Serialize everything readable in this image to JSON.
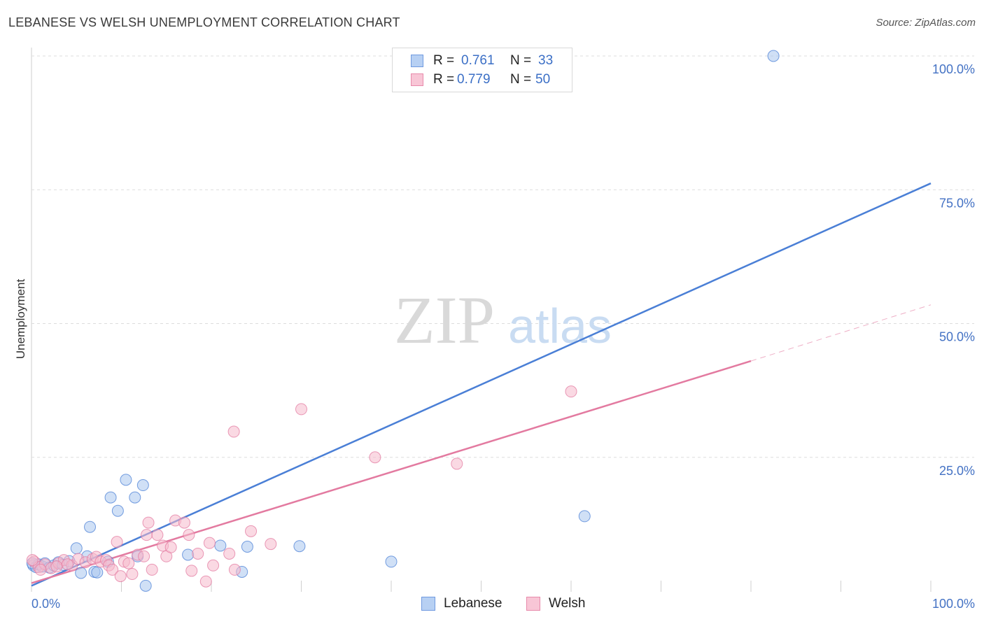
{
  "title": "LEBANESE VS WELSH UNEMPLOYMENT CORRELATION CHART",
  "source": "Source: ZipAtlas.com",
  "watermark": {
    "zip": "ZIP",
    "atlas": "atlas"
  },
  "legend": {
    "rows": [
      {
        "r_label": "R =",
        "r_value": "0.761",
        "n_label": "N =",
        "n_value": "33"
      },
      {
        "r_label": "R =",
        "r_value": "0.779",
        "n_label": "N =",
        "n_value": "50"
      }
    ]
  },
  "chart_data": {
    "type": "scatter",
    "title": "LEBANESE VS WELSH UNEMPLOYMENT CORRELATION CHART",
    "xlabel": "",
    "ylabel": "Unemployment",
    "xlim": [
      0,
      100
    ],
    "ylim": [
      0,
      100
    ],
    "x_tick_labels": [
      "0.0%",
      "100.0%"
    ],
    "y_tick_labels": [
      "100.0%",
      "75.0%",
      "50.0%",
      "25.0%"
    ],
    "y_ticks": [
      100,
      75,
      50,
      25
    ],
    "grid": true,
    "series": [
      {
        "name": "Lebanese",
        "color": "#4a7fd6",
        "fill": "#a9c6ef",
        "trend": {
          "x0": 0,
          "y0": 1.0,
          "x1": 100,
          "y1": 76.2,
          "dashed_from": null
        },
        "points": [
          [
            0.2,
            4.8
          ],
          [
            0.5,
            4.5
          ],
          [
            0.8,
            5.0
          ],
          [
            1.2,
            4.6
          ],
          [
            1.5,
            5.2
          ],
          [
            2.0,
            4.4
          ],
          [
            2.5,
            4.8
          ],
          [
            3.0,
            5.4
          ],
          [
            3.5,
            4.9
          ],
          [
            4.2,
            5.6
          ],
          [
            5.0,
            8.0
          ],
          [
            5.5,
            3.4
          ],
          [
            6.2,
            6.5
          ],
          [
            6.5,
            12.0
          ],
          [
            7.0,
            3.6
          ],
          [
            7.3,
            3.5
          ],
          [
            8.5,
            5.5
          ],
          [
            8.8,
            17.5
          ],
          [
            9.6,
            15.0
          ],
          [
            10.5,
            20.8
          ],
          [
            11.5,
            17.5
          ],
          [
            11.8,
            6.5
          ],
          [
            12.4,
            19.8
          ],
          [
            12.7,
            1.0
          ],
          [
            17.4,
            6.8
          ],
          [
            21.0,
            8.5
          ],
          [
            23.4,
            3.6
          ],
          [
            24.0,
            8.3
          ],
          [
            29.8,
            8.4
          ],
          [
            40.0,
            5.5
          ],
          [
            61.5,
            14.0
          ],
          [
            82.5,
            100.0
          ],
          [
            0.1,
            5.2
          ]
        ]
      },
      {
        "name": "Welsh",
        "color": "#e37aa0",
        "fill": "#f6b9cc",
        "trend": {
          "x0": 0,
          "y0": 1.5,
          "x1": 80,
          "y1": 43.0,
          "dashed_to_x": 100,
          "dashed_to_y": 53.5
        },
        "points": [
          [
            0.3,
            5.5
          ],
          [
            0.8,
            4.5
          ],
          [
            1.5,
            5.0
          ],
          [
            2.2,
            4.3
          ],
          [
            3.0,
            5.2
          ],
          [
            3.6,
            5.8
          ],
          [
            4.5,
            4.8
          ],
          [
            5.2,
            6.0
          ],
          [
            6.0,
            5.4
          ],
          [
            6.8,
            6.0
          ],
          [
            7.2,
            6.4
          ],
          [
            7.7,
            5.5
          ],
          [
            8.3,
            5.8
          ],
          [
            8.6,
            4.8
          ],
          [
            9.0,
            4.0
          ],
          [
            9.5,
            9.2
          ],
          [
            9.9,
            2.8
          ],
          [
            10.3,
            5.5
          ],
          [
            10.8,
            5.2
          ],
          [
            11.2,
            3.2
          ],
          [
            11.8,
            6.8
          ],
          [
            12.5,
            6.5
          ],
          [
            12.8,
            10.5
          ],
          [
            13.0,
            12.8
          ],
          [
            13.4,
            4.0
          ],
          [
            14.0,
            10.5
          ],
          [
            14.6,
            8.5
          ],
          [
            15.0,
            6.5
          ],
          [
            15.5,
            8.2
          ],
          [
            16.0,
            13.2
          ],
          [
            17.0,
            12.8
          ],
          [
            17.5,
            10.5
          ],
          [
            17.8,
            3.8
          ],
          [
            18.5,
            7.0
          ],
          [
            19.4,
            1.8
          ],
          [
            19.8,
            9.0
          ],
          [
            20.2,
            4.8
          ],
          [
            22.0,
            7.0
          ],
          [
            22.5,
            29.8
          ],
          [
            22.6,
            4.0
          ],
          [
            24.4,
            11.2
          ],
          [
            26.6,
            8.8
          ],
          [
            30.0,
            34.0
          ],
          [
            38.2,
            25.0
          ],
          [
            47.3,
            23.8
          ],
          [
            60.0,
            37.3
          ],
          [
            0.1,
            5.8
          ],
          [
            1.0,
            4.0
          ],
          [
            2.8,
            4.6
          ],
          [
            4.0,
            5.0
          ]
        ]
      }
    ]
  },
  "bottom_legend": {
    "items": [
      "Lebanese",
      "Welsh"
    ]
  }
}
